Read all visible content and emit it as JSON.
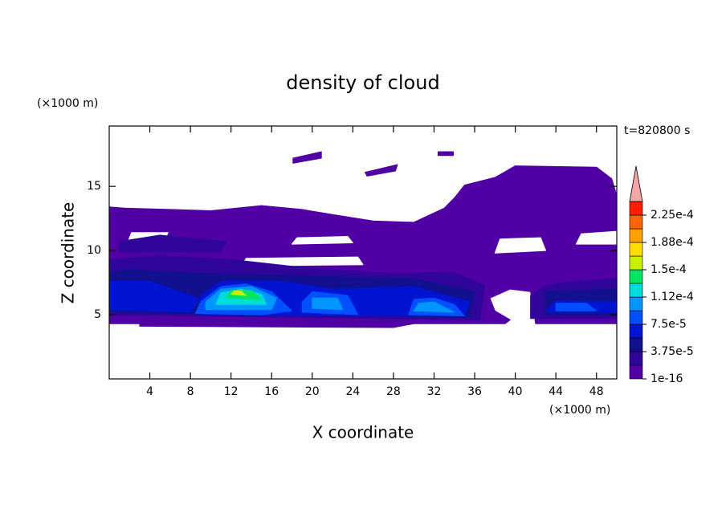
{
  "chart_data": {
    "type": "contour",
    "title": "density of cloud",
    "xlabel": "X coordinate",
    "ylabel": "Z coordinate",
    "xunit": "(×1000 m)",
    "yunit": "(×1000 m)",
    "annotation": "t=820800 s",
    "xlim": [
      0,
      50
    ],
    "ylim": [
      0,
      19.7
    ],
    "xticks": [
      4,
      8,
      12,
      16,
      20,
      24,
      28,
      32,
      36,
      40,
      44,
      48
    ],
    "yticks": [
      5,
      10,
      15
    ],
    "colorbar": {
      "clim": [
        0,
        0.00024375
      ],
      "levels": [
        1e-16,
        1.875e-05,
        3.75e-05,
        5.625e-05,
        7.5e-05,
        9.375e-05,
        0.0001125,
        0.00013125,
        0.00015,
        0.00016875,
        0.0001875,
        0.00020625,
        0.000225
      ],
      "colors": [
        "#5000a5",
        "#30069a",
        "#12108e",
        "#0014d2",
        "#0050ff",
        "#0096ff",
        "#00dcdc",
        "#00e664",
        "#c8f000",
        "#ffdc00",
        "#ffa000",
        "#ff6400",
        "#ff1e00"
      ],
      "over_color": "#f4a6a6",
      "ticks": [
        1e-16,
        {
          "value": 3.75e-05,
          "label": "3.75e-5"
        },
        {
          "value": 7.5e-05,
          "label": "7.5e-5"
        },
        {
          "value": 0.0001125,
          "label": "1.12e-4"
        },
        {
          "value": 0.00015,
          "label": "1.5e-4"
        },
        {
          "value": 0.0001875,
          "label": "1.88e-4"
        },
        {
          "value": 0.000225,
          "label": "2.25e-4"
        }
      ]
    },
    "regions": [
      {
        "level": 1e-16,
        "x": [
          0,
          3,
          3,
          28,
          30,
          39,
          39.5,
          38,
          37.5,
          39.5,
          41.5,
          42,
          50,
          50,
          49.5,
          48,
          40,
          38,
          35,
          34,
          33,
          30,
          26,
          22,
          19,
          15,
          10,
          6,
          1.5,
          0
        ],
        "z": [
          4.3,
          4.3,
          4.1,
          4.0,
          4.3,
          4.3,
          4.6,
          5.3,
          6.3,
          7.0,
          6.8,
          4.3,
          4.3,
          14.3,
          15.6,
          16.5,
          16.6,
          15.7,
          15.1,
          14.1,
          13.3,
          12.2,
          12.3,
          12.8,
          13.2,
          13.5,
          13.1,
          13.2,
          13.3,
          13.4
        ]
      },
      {
        "level": 1e-16,
        "x": [
          18.1,
          20.9,
          20.9,
          18.1
        ],
        "z": [
          17.2,
          17.7,
          17.2,
          16.8
        ]
      },
      {
        "level": 1e-16,
        "x": [
          25.2,
          28.4,
          28.2,
          25.4
        ],
        "z": [
          16.1,
          16.7,
          16.2,
          15.8
        ]
      },
      {
        "level": 1e-16,
        "x": [
          32.4,
          33.9,
          33.9,
          32.4
        ],
        "z": [
          17.4,
          17.4,
          17.7,
          17.7
        ]
      },
      {
        "level": null,
        "x": [
          1.9,
          5.5,
          5.8,
          2.2
        ],
        "z": [
          10.8,
          10.9,
          11.4,
          11.4
        ]
      },
      {
        "level": null,
        "x": [
          13,
          25,
          24.5,
          13.5
        ],
        "z": [
          8.8,
          8.9,
          9.5,
          9.4
        ]
      },
      {
        "level": null,
        "x": [
          18,
          24,
          23.5,
          18.5
        ],
        "z": [
          10.5,
          10.6,
          11.1,
          11.0
        ]
      },
      {
        "level": null,
        "x": [
          38,
          43,
          42.5,
          38.5
        ],
        "z": [
          9.8,
          10.0,
          11.0,
          10.9
        ]
      },
      {
        "level": null,
        "x": [
          46,
          50,
          50,
          46.5
        ],
        "z": [
          10.5,
          10.5,
          11.5,
          11.3
        ]
      },
      {
        "level": 1.875e-05,
        "x": [
          0,
          36.5,
          37,
          34,
          28,
          20,
          12,
          5,
          0
        ],
        "z": [
          5,
          4.6,
          7.3,
          8.3,
          8.2,
          8.6,
          9.3,
          9.6,
          9.3
        ]
      },
      {
        "level": 1.875e-05,
        "x": [
          41.5,
          50,
          50,
          46,
          43,
          41.5
        ],
        "z": [
          4.7,
          4.7,
          7.8,
          7.6,
          7.3,
          6.5
        ]
      },
      {
        "level": 1.875e-05,
        "x": [
          1,
          11,
          11.5,
          5,
          1
        ],
        "z": [
          9.9,
          9.9,
          10.7,
          11.2,
          10.7
        ]
      },
      {
        "level": 3.75e-05,
        "x": [
          0,
          35.5,
          36,
          30,
          20,
          10,
          2,
          0
        ],
        "z": [
          5.2,
          4.8,
          6.8,
          7.8,
          8.0,
          8.2,
          8.5,
          8.3
        ]
      },
      {
        "level": 3.75e-05,
        "x": [
          43,
          50,
          50,
          43
        ],
        "z": [
          5,
          5,
          7,
          6.8
        ]
      },
      {
        "level": 5.625e-05,
        "x": [
          0,
          8,
          9,
          4,
          0
        ],
        "z": [
          5.4,
          5.2,
          6.2,
          7.6,
          7.6
        ]
      },
      {
        "level": 5.625e-05,
        "x": [
          9,
          35,
          35.5,
          30,
          22,
          17,
          11,
          9
        ],
        "z": [
          5.0,
          4.9,
          6.0,
          7.2,
          7.0,
          7.6,
          7.6,
          6.5
        ]
      },
      {
        "level": 5.625e-05,
        "x": [
          43,
          50,
          50,
          44
        ],
        "z": [
          5.2,
          5.2,
          6.0,
          6.1
        ]
      },
      {
        "level": 7.5e-05,
        "x": [
          8.5,
          15,
          18,
          16,
          13.5,
          11,
          9
        ],
        "z": [
          5.1,
          5.0,
          5.3,
          6.8,
          7.4,
          7.2,
          6.0
        ]
      },
      {
        "level": 7.5e-05,
        "x": [
          19,
          24.5,
          23.5,
          20,
          19
        ],
        "z": [
          5.2,
          5.0,
          6.5,
          6.8,
          6.0
        ]
      },
      {
        "level": 7.5e-05,
        "x": [
          29.5,
          35,
          34,
          32,
          30
        ],
        "z": [
          5.0,
          4.9,
          5.8,
          6.3,
          6.2
        ]
      },
      {
        "level": 7.5e-05,
        "x": [
          44,
          48,
          47,
          44
        ],
        "z": [
          5.3,
          5.3,
          5.9,
          5.9
        ]
      },
      {
        "level": 9.375e-05,
        "x": [
          9.5,
          16,
          16.5,
          14,
          11,
          9.5
        ],
        "z": [
          5.4,
          5.4,
          6.3,
          7.2,
          7.0,
          6.0
        ]
      },
      {
        "level": 9.375e-05,
        "x": [
          20,
          23,
          22.5,
          20
        ],
        "z": [
          5.5,
          5.4,
          6.3,
          6.3
        ]
      },
      {
        "level": 9.375e-05,
        "x": [
          30,
          34,
          32,
          30.5
        ],
        "z": [
          5.3,
          5.2,
          6.0,
          5.9
        ]
      },
      {
        "level": 0.0001125,
        "x": [
          10.5,
          15.5,
          15,
          13,
          11
        ],
        "z": [
          5.8,
          5.8,
          6.6,
          7.0,
          6.7
        ]
      },
      {
        "level": 0.00013125,
        "x": [
          11.5,
          15,
          14,
          12
        ],
        "z": [
          6.3,
          6.2,
          6.9,
          6.9
        ]
      },
      {
        "level": 0.00015,
        "x": [
          12,
          13.5,
          13,
          12.3
        ],
        "z": [
          6.6,
          6.5,
          6.85,
          6.85
        ]
      }
    ]
  }
}
